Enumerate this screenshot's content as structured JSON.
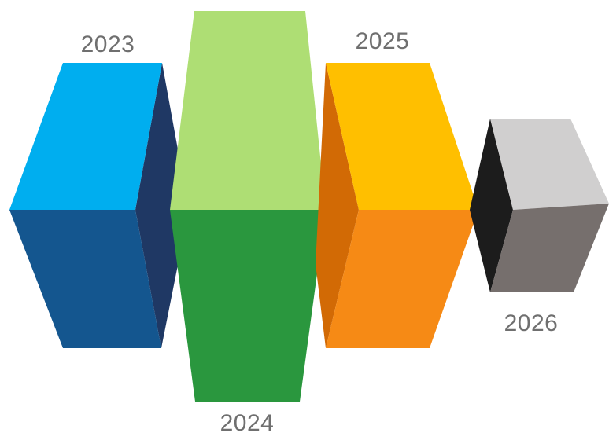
{
  "blocks": [
    {
      "year": "2023",
      "colors": {
        "top": "#00aeef",
        "front": "#14568f",
        "side": "#1f3864"
      }
    },
    {
      "year": "2024",
      "colors": {
        "top": "#aede74",
        "front": "#2a973e"
      }
    },
    {
      "year": "2025",
      "colors": {
        "top": "#ffbf00",
        "front": "#f68a15",
        "side": "#d26a05"
      }
    },
    {
      "year": "2026",
      "colors": {
        "top": "#d0cfcf",
        "front": "#766f6d",
        "side": "#1c1c1c"
      }
    }
  ],
  "label_color": "#6f6f6f"
}
